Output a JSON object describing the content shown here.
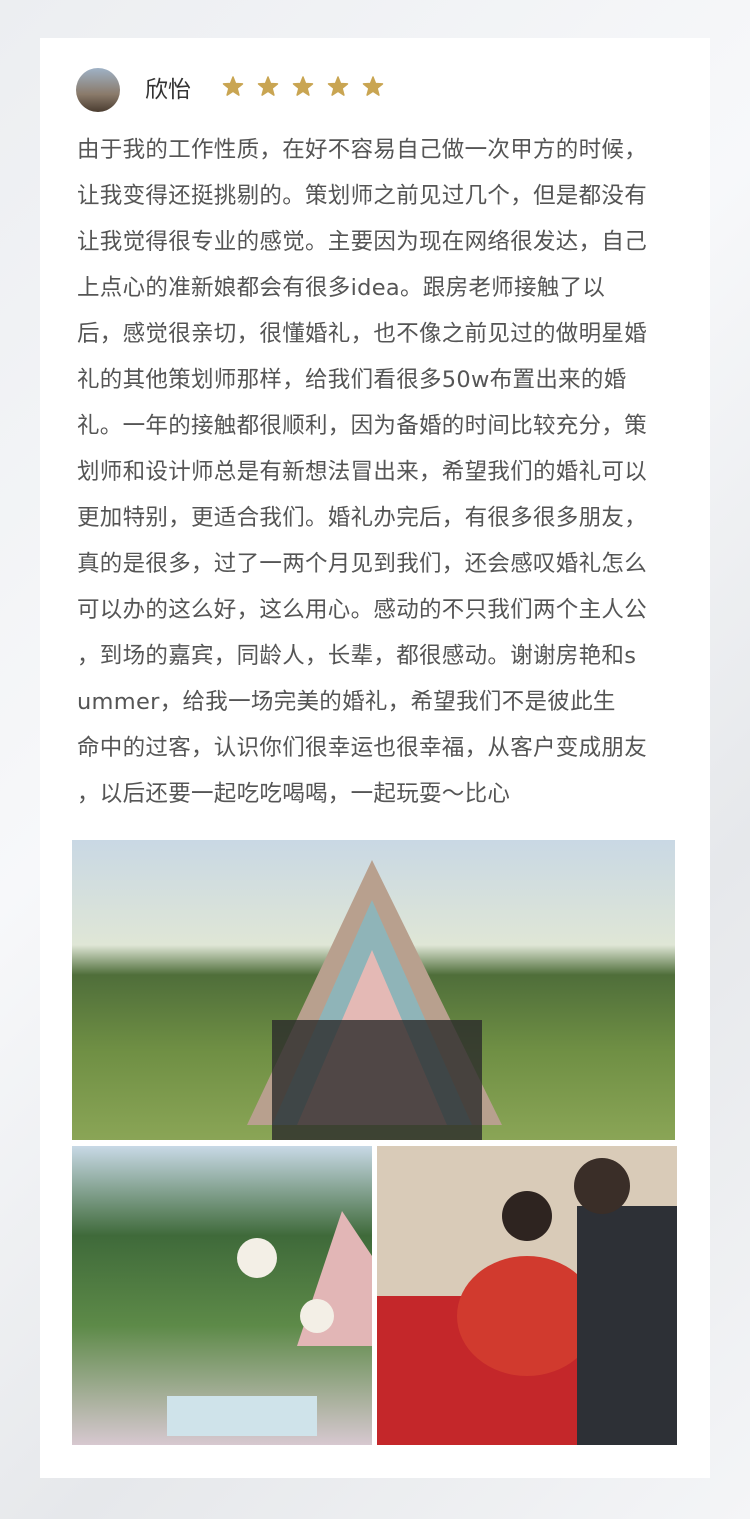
{
  "name": "欣怡",
  "rating": 5,
  "review_lines": [
    "由于我的工作性质，在好不容易自己做一次甲方的时候，",
    "让我变得还挺挑剔的。策划师之前见过几个，但是都没有",
    "让我觉得很专业的感觉。主要因为现在网络很发达，自己",
    "上点心的准新娘都会有很多idea。跟房老师接触了以",
    "后，感觉很亲切，很懂婚礼，也不像之前见过的做明星婚",
    "礼的其他策划师那样，给我们看很多50w布置出来的婚",
    "礼。一年的接触都很顺利，因为备婚的时间比较充分，策",
    "划师和设计师总是有新想法冒出来，希望我们的婚礼可以",
    "更加特别，更适合我们。婚礼办完后，有很多很多朋友，",
    "真的是很多，过了一两个月见到我们，还会感叹婚礼怎么",
    "可以办的这么好，这么用心。感动的不只我们两个主人公",
    "，到场的嘉宾，同龄人，长辈，都很感动。谢谢房艳和s",
    "ummer，给我一场完美的婚礼，希望我们不是彼此生",
    "命中的过客，认识你们很幸运也很幸福，从客户变成朋友",
    "，以后还要一起吃吃喝喝，一起玩耍～比心"
  ]
}
